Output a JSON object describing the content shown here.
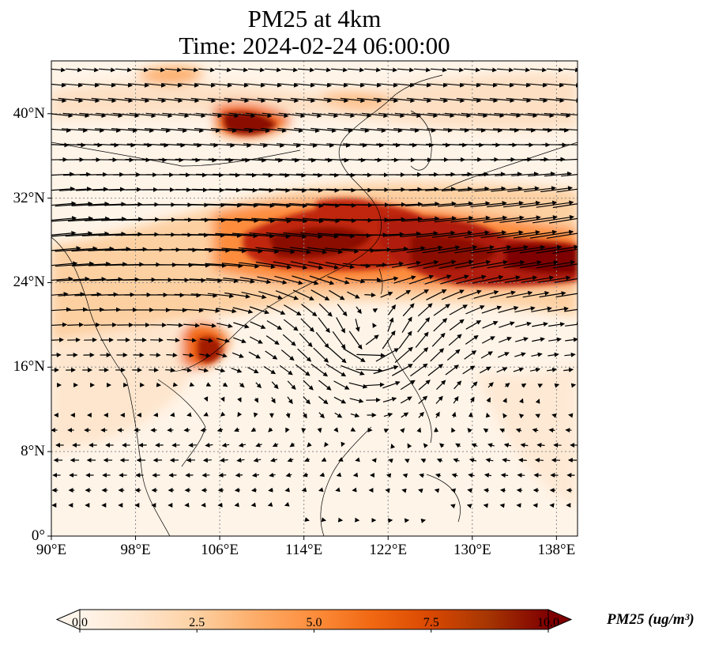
{
  "title": {
    "line1": "PM25 at 4km",
    "line2": "Time: 2024-02-24 06:00:00"
  },
  "map": {
    "extent": {
      "lon_min": 90,
      "lon_max": 140,
      "lat_min": 0,
      "lat_max": 45
    },
    "lat_ticks": [
      {
        "value": 40,
        "label": "40°N"
      },
      {
        "value": 32,
        "label": "32°N"
      },
      {
        "value": 24,
        "label": "24°N"
      },
      {
        "value": 16,
        "label": "16°N"
      },
      {
        "value": 8,
        "label": "8°N"
      },
      {
        "value": 0,
        "label": "0°"
      }
    ],
    "lon_ticks": [
      {
        "value": 90,
        "label": "90°E"
      },
      {
        "value": 98,
        "label": "98°E"
      },
      {
        "value": 106,
        "label": "106°E"
      },
      {
        "value": 114,
        "label": "114°E"
      },
      {
        "value": 122,
        "label": "122°E"
      },
      {
        "value": 130,
        "label": "130°E"
      },
      {
        "value": 138,
        "label": "138°E"
      }
    ],
    "gridlines": true
  },
  "colorbar": {
    "min": 0.0,
    "max": 10.0,
    "ticks": [
      "0.0",
      "2.5",
      "5.0",
      "7.5",
      "10.0"
    ],
    "label": "PM25 (ug/m³)",
    "colormap": [
      "#fff5eb",
      "#fee6ce",
      "#fdd0a2",
      "#fdae6b",
      "#fd8d3c",
      "#f16913",
      "#d94801",
      "#a63603",
      "#7f0000"
    ]
  }
}
